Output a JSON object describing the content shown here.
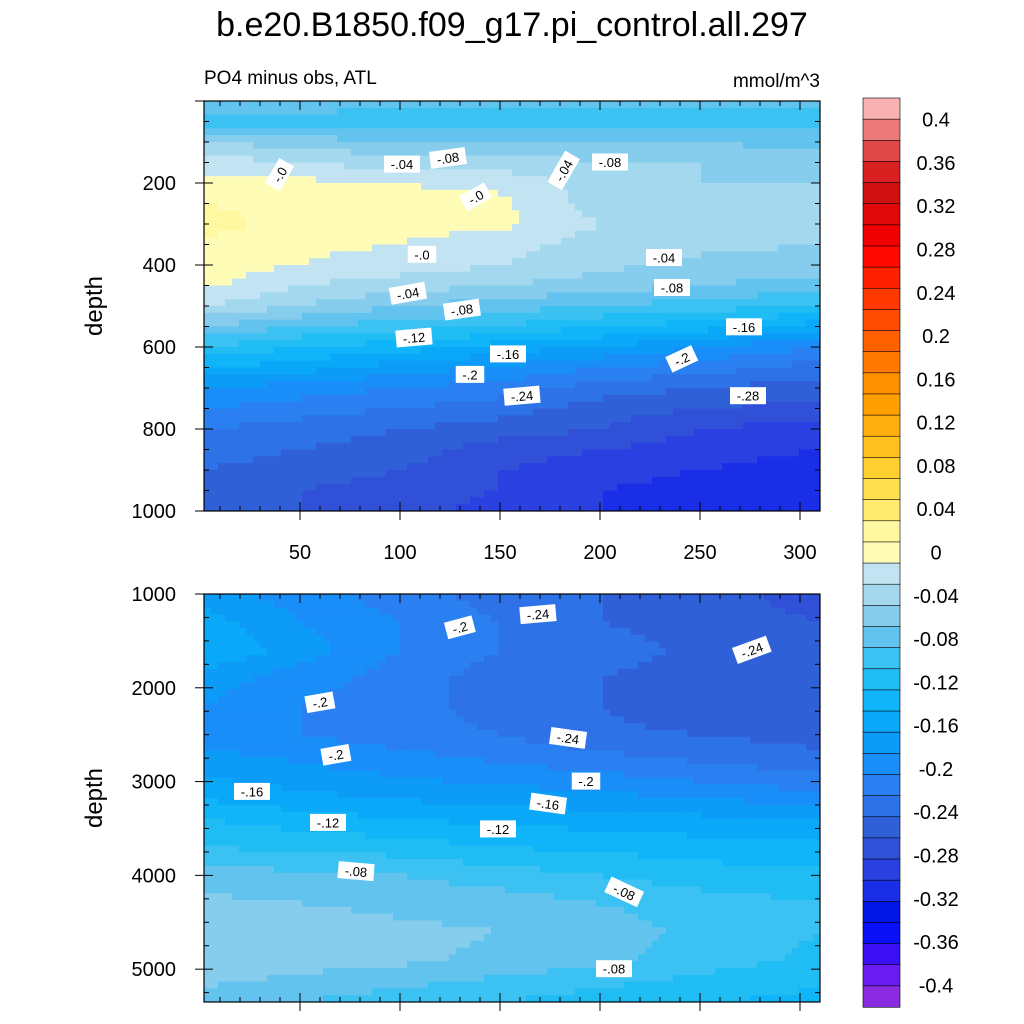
{
  "chart_data": {
    "type": "heatmap",
    "title": "b.e20.B1850.f09_g17.pi_control.all.297",
    "subtitle_left": "PO4 minus obs, ATL",
    "subtitle_right": "mmol/m^3",
    "colorbar": {
      "levels": [
        -0.42,
        -0.4,
        -0.38,
        -0.36,
        -0.34,
        -0.32,
        -0.3,
        -0.28,
        -0.26,
        -0.24,
        -0.22,
        -0.2,
        -0.18,
        -0.16,
        -0.14,
        -0.12,
        -0.1,
        -0.08,
        -0.06,
        -0.04,
        -0.02,
        0,
        0.02,
        0.04,
        0.06,
        0.08,
        0.1,
        0.12,
        0.14,
        0.16,
        0.18,
        0.2,
        0.22,
        0.24,
        0.26,
        0.28,
        0.3,
        0.32,
        0.34,
        0.36,
        0.38,
        0.4,
        0.42
      ],
      "colors": [
        "#8a2be2",
        "#6a1cf0",
        "#3a0ff5",
        "#0a10f5",
        "#0015e6",
        "#1a2ee8",
        "#2a40e0",
        "#3050d8",
        "#3060d8",
        "#2e72e8",
        "#2a80f0",
        "#1a8ef8",
        "#0c9cf8",
        "#0aa8f8",
        "#10b4f8",
        "#20bdf5",
        "#3cc2f2",
        "#62c4ee",
        "#86cded",
        "#a4d8ee",
        "#c2e3f2",
        "#fffcb8",
        "#fff8a0",
        "#ffeb70",
        "#ffe050",
        "#ffd030",
        "#ffc020",
        "#ffb010",
        "#ffa000",
        "#ff9000",
        "#ff7800",
        "#ff6000",
        "#ff4c00",
        "#ff3800",
        "#ff2000",
        "#ff0a00",
        "#f00000",
        "#e00808",
        "#d01010",
        "#d82020",
        "#e04848",
        "#ec7a7a",
        "#f8b2b2"
      ],
      "tick_labels": [
        "-0.4",
        "-0.36",
        "-0.32",
        "-0.28",
        "-0.24",
        "-0.2",
        "-0.16",
        "-0.12",
        "-0.08",
        "-0.04",
        "0",
        "0.04",
        "0.08",
        "0.12",
        "0.16",
        "0.2",
        "0.24",
        "0.28",
        "0.32",
        "0.36",
        "0.4"
      ],
      "tick_values": [
        -0.4,
        -0.36,
        -0.32,
        -0.28,
        -0.24,
        -0.2,
        -0.16,
        -0.12,
        -0.08,
        -0.04,
        0,
        0.04,
        0.08,
        0.12,
        0.16,
        0.2,
        0.24,
        0.28,
        0.32,
        0.36,
        0.4
      ]
    },
    "panels": [
      {
        "ylabel": "depth",
        "ylim": [
          0,
          1000
        ],
        "xlim": [
          2,
          310
        ],
        "x_ticks": [
          50,
          100,
          150,
          200,
          250,
          300
        ],
        "x_tick_labels": [
          "50",
          "100",
          "150",
          "200",
          "250",
          "300"
        ],
        "y_ticks": [
          200,
          400,
          600,
          800,
          1000
        ],
        "y_tick_labels": [
          "200",
          "400",
          "600",
          "800",
          "1000"
        ],
        "field": {
          "x": [
            2,
            50,
            100,
            150,
            200,
            250,
            310
          ],
          "y": [
            10,
            50,
            100,
            150,
            200,
            250,
            300,
            350,
            400,
            450,
            500,
            550,
            600,
            650,
            700,
            750,
            800,
            850,
            900,
            950,
            1000
          ],
          "values": [
            [
              -0.07,
              -0.07,
              -0.08,
              -0.08,
              -0.08,
              -0.08,
              -0.08
            ],
            [
              -0.09,
              -0.09,
              -0.09,
              -0.09,
              -0.09,
              -0.09,
              -0.09
            ],
            [
              -0.04,
              -0.05,
              -0.06,
              -0.06,
              -0.06,
              -0.06,
              -0.07
            ],
            [
              -0.01,
              -0.02,
              -0.03,
              -0.03,
              -0.04,
              -0.04,
              -0.05
            ],
            [
              0.01,
              0.005,
              0.0,
              -0.005,
              -0.03,
              -0.04,
              -0.04
            ],
            [
              0.02,
              0.01,
              0.005,
              0.005,
              -0.03,
              -0.03,
              -0.035
            ],
            [
              0.03,
              0.01,
              0.005,
              0.005,
              -0.02,
              -0.03,
              -0.035
            ],
            [
              0.015,
              0.005,
              0.0,
              -0.01,
              -0.03,
              -0.035,
              -0.04
            ],
            [
              0.01,
              0.0,
              -0.01,
              -0.02,
              -0.035,
              -0.045,
              -0.05
            ],
            [
              0.005,
              -0.02,
              -0.03,
              -0.04,
              -0.05,
              -0.06,
              -0.07
            ],
            [
              -0.02,
              -0.04,
              -0.06,
              -0.07,
              -0.08,
              -0.09,
              -0.1
            ],
            [
              -0.06,
              -0.08,
              -0.09,
              -0.1,
              -0.12,
              -0.13,
              -0.15
            ],
            [
              -0.1,
              -0.12,
              -0.13,
              -0.15,
              -0.16,
              -0.18,
              -0.2
            ],
            [
              -0.14,
              -0.15,
              -0.17,
              -0.18,
              -0.2,
              -0.21,
              -0.23
            ],
            [
              -0.18,
              -0.19,
              -0.2,
              -0.21,
              -0.23,
              -0.24,
              -0.25
            ],
            [
              -0.2,
              -0.21,
              -0.22,
              -0.23,
              -0.25,
              -0.26,
              -0.27
            ],
            [
              -0.22,
              -0.23,
              -0.24,
              -0.25,
              -0.26,
              -0.28,
              -0.29
            ],
            [
              -0.23,
              -0.24,
              -0.25,
              -0.27,
              -0.28,
              -0.29,
              -0.3
            ],
            [
              -0.24,
              -0.25,
              -0.26,
              -0.28,
              -0.29,
              -0.3,
              -0.31
            ],
            [
              -0.24,
              -0.26,
              -0.27,
              -0.28,
              -0.3,
              -0.31,
              -0.32
            ],
            [
              -0.25,
              -0.26,
              -0.27,
              -0.29,
              -0.3,
              -0.31,
              -0.32
            ]
          ]
        },
        "contour_labels": [
          {
            "x": 40,
            "y": 180,
            "text": "-.0",
            "angle": -60
          },
          {
            "x": 101,
            "y": 155,
            "text": "-.04",
            "angle": 0
          },
          {
            "x": 124,
            "y": 140,
            "text": "-.08",
            "angle": -8
          },
          {
            "x": 138,
            "y": 235,
            "text": "-.0",
            "angle": -30
          },
          {
            "x": 182,
            "y": 170,
            "text": "-.04",
            "angle": -60
          },
          {
            "x": 205,
            "y": 150,
            "text": "-.08",
            "angle": 0
          },
          {
            "x": 111,
            "y": 375,
            "text": "-.0",
            "angle": 0
          },
          {
            "x": 104,
            "y": 470,
            "text": "-.04",
            "angle": -10
          },
          {
            "x": 131,
            "y": 510,
            "text": "-.08",
            "angle": -8
          },
          {
            "x": 232,
            "y": 383,
            "text": "-.04",
            "angle": 0
          },
          {
            "x": 236,
            "y": 456,
            "text": "-.08",
            "angle": 0
          },
          {
            "x": 107,
            "y": 578,
            "text": "-.12",
            "angle": -5
          },
          {
            "x": 154,
            "y": 618,
            "text": "-.16",
            "angle": 0
          },
          {
            "x": 135,
            "y": 668,
            "text": "-.2",
            "angle": 0
          },
          {
            "x": 272,
            "y": 552,
            "text": "-.16",
            "angle": 0
          },
          {
            "x": 241,
            "y": 630,
            "text": "-.2",
            "angle": -25
          },
          {
            "x": 161,
            "y": 720,
            "text": "-.24",
            "angle": -5
          },
          {
            "x": 274,
            "y": 720,
            "text": "-.28",
            "angle": 0
          }
        ]
      },
      {
        "ylabel": "depth",
        "ylim": [
          1000,
          5350
        ],
        "xlim": [
          2,
          310
        ],
        "x_ticks": [
          50,
          100,
          150,
          200,
          250,
          300
        ],
        "x_tick_labels": [
          "",
          "",
          "",
          "",
          "",
          ""
        ],
        "y_ticks": [
          1000,
          2000,
          3000,
          4000,
          5000
        ],
        "y_tick_labels": [
          "1000",
          "2000",
          "3000",
          "4000",
          "5000"
        ],
        "field": {
          "x": [
            2,
            50,
            100,
            150,
            200,
            250,
            310
          ],
          "y": [
            1000,
            1300,
            1600,
            1900,
            2200,
            2500,
            2800,
            3100,
            3400,
            3700,
            4000,
            4300,
            4600,
            4900,
            5200,
            5350
          ],
          "values": [
            [
              -0.17,
              -0.19,
              -0.21,
              -0.23,
              -0.24,
              -0.25,
              -0.27
            ],
            [
              -0.15,
              -0.18,
              -0.2,
              -0.22,
              -0.24,
              -0.25,
              -0.26
            ],
            [
              -0.14,
              -0.17,
              -0.2,
              -0.22,
              -0.23,
              -0.245,
              -0.26
            ],
            [
              -0.17,
              -0.19,
              -0.21,
              -0.23,
              -0.24,
              -0.25,
              -0.26
            ],
            [
              -0.18,
              -0.2,
              -0.21,
              -0.23,
              -0.24,
              -0.255,
              -0.26
            ],
            [
              -0.19,
              -0.2,
              -0.21,
              -0.22,
              -0.235,
              -0.24,
              -0.25
            ],
            [
              -0.17,
              -0.18,
              -0.19,
              -0.2,
              -0.21,
              -0.22,
              -0.23
            ],
            [
              -0.15,
              -0.16,
              -0.17,
              -0.175,
              -0.18,
              -0.19,
              -0.2
            ],
            [
              -0.12,
              -0.13,
              -0.14,
              -0.145,
              -0.15,
              -0.155,
              -0.16
            ],
            [
              -0.1,
              -0.105,
              -0.11,
              -0.12,
              -0.125,
              -0.13,
              -0.135
            ],
            [
              -0.07,
              -0.075,
              -0.08,
              -0.09,
              -0.1,
              -0.11,
              -0.115
            ],
            [
              -0.055,
              -0.06,
              -0.065,
              -0.07,
              -0.08,
              -0.09,
              -0.1
            ],
            [
              -0.045,
              -0.05,
              -0.055,
              -0.06,
              -0.07,
              -0.085,
              -0.1
            ],
            [
              -0.045,
              -0.05,
              -0.055,
              -0.065,
              -0.075,
              -0.09,
              -0.105
            ],
            [
              -0.06,
              -0.07,
              -0.08,
              -0.09,
              -0.1,
              -0.11,
              -0.12
            ],
            [
              -0.07,
              -0.08,
              -0.09,
              -0.1,
              -0.11,
              -0.12,
              -0.125
            ]
          ]
        },
        "contour_labels": [
          {
            "x": 130,
            "y": 1360,
            "text": "-.2",
            "angle": -15
          },
          {
            "x": 169,
            "y": 1220,
            "text": "-.24",
            "angle": -5
          },
          {
            "x": 276,
            "y": 1600,
            "text": "-.24",
            "angle": -20
          },
          {
            "x": 60,
            "y": 2160,
            "text": "-.2",
            "angle": -10
          },
          {
            "x": 68,
            "y": 2720,
            "text": "-.2",
            "angle": -10
          },
          {
            "x": 184,
            "y": 2540,
            "text": "-.24",
            "angle": 8
          },
          {
            "x": 193,
            "y": 3000,
            "text": "-.2",
            "angle": 0
          },
          {
            "x": 174,
            "y": 3240,
            "text": "-.16",
            "angle": 8
          },
          {
            "x": 26,
            "y": 3110,
            "text": "-.16",
            "angle": 0
          },
          {
            "x": 64,
            "y": 3440,
            "text": "-.12",
            "angle": 0
          },
          {
            "x": 149,
            "y": 3510,
            "text": "-.12",
            "angle": 0
          },
          {
            "x": 78,
            "y": 3960,
            "text": "-.08",
            "angle": 5
          },
          {
            "x": 212,
            "y": 4180,
            "text": "-.08",
            "angle": 25
          },
          {
            "x": 207,
            "y": 5000,
            "text": "-.08",
            "angle": 0
          }
        ]
      }
    ]
  }
}
